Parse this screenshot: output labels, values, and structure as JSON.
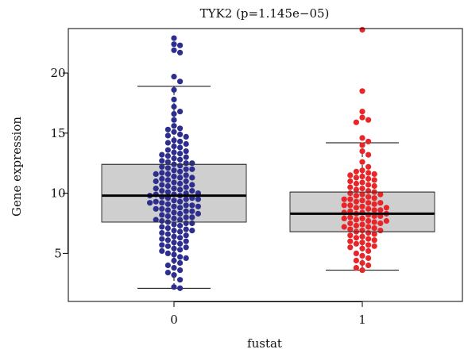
{
  "chart_data": {
    "type": "box",
    "title": "TYK2 (p=1.145e−05)",
    "xlabel": "fustat",
    "ylabel": "Gene expression",
    "categories": [
      "0",
      "1"
    ],
    "ylim": [
      1.0,
      23.7
    ],
    "yticks": [
      "5",
      "10",
      "15",
      "20"
    ],
    "grid": false,
    "legend": "none",
    "box_color": "#cfcfcf",
    "boxes": [
      {
        "category": "0",
        "whisker_low": 2.1,
        "q1": 7.6,
        "median": 9.8,
        "q3": 12.4,
        "whisker_high": 18.9,
        "point_color": "#2e2e8f"
      },
      {
        "category": "1",
        "whisker_low": 3.6,
        "q1": 6.8,
        "median": 8.3,
        "q3": 10.1,
        "whisker_high": 14.2,
        "point_color": "#e8262a"
      }
    ],
    "points": [
      {
        "category": "0",
        "values": [
          22.9,
          22.4,
          22.3,
          21.9,
          21.7,
          19.7,
          19.3,
          18.6,
          17.8,
          17.2,
          16.8,
          16.6,
          16.1,
          15.6,
          15.4,
          15.3,
          15.1,
          14.9,
          14.8,
          14.7,
          14.4,
          14.3,
          14.2,
          14.1,
          13.9,
          13.8,
          13.6,
          13.5,
          13.4,
          13.3,
          13.2,
          13.1,
          13.0,
          12.9,
          12.8,
          12.7,
          12.6,
          12.5,
          12.5,
          12.4,
          12.3,
          12.2,
          12.1,
          12.0,
          12.0,
          11.9,
          11.8,
          11.7,
          11.6,
          11.6,
          11.5,
          11.4,
          11.3,
          11.3,
          11.2,
          11.1,
          11.0,
          11.0,
          10.9,
          10.8,
          10.7,
          10.7,
          10.6,
          10.5,
          10.4,
          10.4,
          10.3,
          10.2,
          10.2,
          10.1,
          10.0,
          10.0,
          9.9,
          9.9,
          9.8,
          9.8,
          9.7,
          9.6,
          9.6,
          9.5,
          9.5,
          9.4,
          9.3,
          9.3,
          9.2,
          9.2,
          9.1,
          9.0,
          9.0,
          8.9,
          8.9,
          8.8,
          8.7,
          8.7,
          8.6,
          8.5,
          8.5,
          8.4,
          8.3,
          8.3,
          8.2,
          8.1,
          8.0,
          8.0,
          7.9,
          7.8,
          7.8,
          7.7,
          7.6,
          7.5,
          7.5,
          7.4,
          7.3,
          7.2,
          7.1,
          7.0,
          6.9,
          6.9,
          6.8,
          6.7,
          6.6,
          6.5,
          6.4,
          6.3,
          6.2,
          6.1,
          6.0,
          5.9,
          5.8,
          5.7,
          5.6,
          5.5,
          5.4,
          5.3,
          5.2,
          5.0,
          4.9,
          4.7,
          4.6,
          4.4,
          4.2,
          4.0,
          3.8,
          3.6,
          3.4,
          3.2,
          2.8,
          2.2,
          2.1
        ]
      },
      {
        "category": "1",
        "values": [
          23.6,
          18.5,
          16.8,
          16.3,
          16.1,
          15.9,
          14.6,
          14.3,
          14.0,
          13.5,
          13.2,
          12.6,
          12.2,
          11.9,
          11.8,
          11.7,
          11.6,
          11.5,
          11.4,
          11.3,
          11.2,
          11.1,
          11.0,
          10.9,
          10.8,
          10.7,
          10.6,
          10.5,
          10.4,
          10.3,
          10.2,
          10.1,
          10.0,
          9.9,
          9.9,
          9.8,
          9.7,
          9.6,
          9.5,
          9.5,
          9.4,
          9.3,
          9.2,
          9.2,
          9.1,
          9.0,
          9.0,
          8.9,
          8.8,
          8.8,
          8.7,
          8.6,
          8.6,
          8.5,
          8.4,
          8.4,
          8.3,
          8.3,
          8.2,
          8.1,
          8.1,
          8.0,
          7.9,
          7.9,
          7.8,
          7.7,
          7.7,
          7.6,
          7.5,
          7.5,
          7.4,
          7.3,
          7.2,
          7.2,
          7.1,
          7.0,
          6.9,
          6.9,
          6.8,
          6.7,
          6.6,
          6.5,
          6.4,
          6.3,
          6.2,
          6.1,
          6.0,
          5.9,
          5.8,
          5.7,
          5.6,
          5.5,
          5.4,
          5.2,
          5.0,
          4.8,
          4.6,
          4.4,
          4.2,
          4.0,
          3.8,
          3.6
        ]
      }
    ]
  }
}
